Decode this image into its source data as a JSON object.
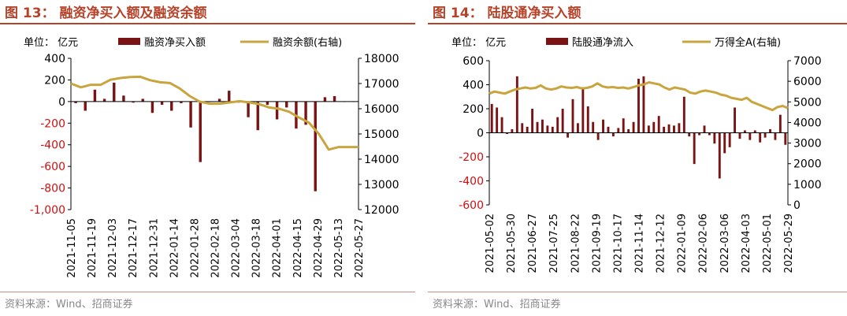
{
  "colors": {
    "accent": "#b5432a",
    "bar": "#7a1414",
    "line": "#c8a53f",
    "neg_axis": "#d01010",
    "axis": "#000000",
    "source": "#888888"
  },
  "panel_left": {
    "title": "图 13：  融资净买入额及融资余额",
    "source": "资料来源：Wind、招商证券"
  },
  "panel_right": {
    "title": "图 14：  陆股通净买入额",
    "source": "资料来源：Wind、招商证券"
  },
  "chart_data": [
    {
      "type": "bar",
      "unit_label": "单位：  亿元",
      "legend": [
        "融资净买入额",
        "融资余额(右轴)"
      ],
      "ylim_left": [
        -1000,
        400
      ],
      "yticks_left": [
        "400",
        "200",
        "0",
        "-200",
        "-400",
        "-600",
        "-800",
        "-1,000"
      ],
      "ylim_right": [
        12000,
        18000
      ],
      "yticks_right": [
        "18000",
        "17000",
        "16000",
        "15000",
        "14000",
        "13000",
        "12000"
      ],
      "x_tick_labels": [
        "2021-11-05",
        "2021-11-19",
        "2021-12-03",
        "2021-12-17",
        "2021-12-31",
        "2022-01-14",
        "2022-01-28",
        "2022-02-18",
        "2022-03-04",
        "2022-03-18",
        "2022-04-01",
        "2022-04-15",
        "2022-04-29",
        "2022-05-13",
        "2022-05-27"
      ],
      "series": [
        {
          "name": "融资净买入额",
          "type": "bar",
          "values": [
            -15,
            -85,
            110,
            25,
            175,
            55,
            -10,
            25,
            -105,
            -30,
            -85,
            -15,
            -240,
            -560,
            0,
            25,
            100,
            -10,
            -145,
            -265,
            -30,
            -165,
            -55,
            -250,
            -215,
            -830,
            40,
            50,
            0,
            0
          ]
        },
        {
          "name": "融资余额(右轴)",
          "type": "line",
          "values": [
            17000,
            16850,
            16950,
            16950,
            17150,
            17220,
            17260,
            17270,
            17130,
            17050,
            17020,
            16800,
            16500,
            16280,
            16200,
            16200,
            16250,
            16300,
            16250,
            16180,
            16050,
            16000,
            15880,
            15650,
            15450,
            15000,
            14380,
            14480,
            14480,
            14480
          ]
        }
      ]
    },
    {
      "type": "bar",
      "unit_label": "单位：  亿元",
      "legend": [
        "陆股通净流入",
        "万得全A(右轴)"
      ],
      "ylim_left": [
        -600,
        600
      ],
      "yticks_left": [
        "600",
        "400",
        "200",
        "0",
        "-200",
        "-400",
        "-600"
      ],
      "ylim_right": [
        0,
        7000
      ],
      "yticks_right": [
        "7000",
        "6000",
        "5000",
        "4000",
        "3000",
        "2000",
        "1000",
        "0"
      ],
      "x_tick_labels": [
        "2021-05-02",
        "2021-05-30",
        "2021-06-27",
        "2021-07-25",
        "2021-08-22",
        "2021-09-19",
        "2021-10-17",
        "2021-11-14",
        "2021-12-12",
        "2022-01-09",
        "2022-02-06",
        "2022-03-06",
        "2022-04-03",
        "2022-05-01",
        "2022-05-29"
      ],
      "series": [
        {
          "name": "陆股通净流入",
          "type": "bar",
          "values": [
            240,
            210,
            130,
            -10,
            30,
            470,
            80,
            50,
            200,
            90,
            110,
            60,
            50,
            130,
            200,
            -40,
            280,
            80,
            380,
            220,
            90,
            -60,
            110,
            50,
            -30,
            40,
            120,
            30,
            90,
            450,
            470,
            60,
            90,
            140,
            50,
            70,
            60,
            80,
            300,
            -30,
            -260,
            -20,
            60,
            -20,
            -90,
            -380,
            -170,
            -120,
            210,
            -50,
            20,
            -60,
            20,
            -80,
            -40,
            30,
            -60,
            150,
            -100
          ]
        },
        {
          "name": "万得全A(右轴)",
          "type": "line",
          "values": [
            5400,
            5500,
            5450,
            5400,
            5500,
            5600,
            5650,
            5700,
            5650,
            5680,
            5800,
            5650,
            5600,
            5650,
            5750,
            5700,
            5680,
            5720,
            5650,
            5680,
            5750,
            5900,
            5750,
            5700,
            5720,
            5680,
            5700,
            5650,
            5720,
            5800,
            5850,
            5950,
            5900,
            5850,
            5700,
            5600,
            5700,
            5650,
            5600,
            5450,
            5400,
            5500,
            5550,
            5500,
            5450,
            5350,
            5300,
            5200,
            5150,
            5100,
            5200,
            5000,
            4900,
            4800,
            4700,
            4600,
            4750,
            4800,
            4700
          ]
        }
      ]
    }
  ]
}
